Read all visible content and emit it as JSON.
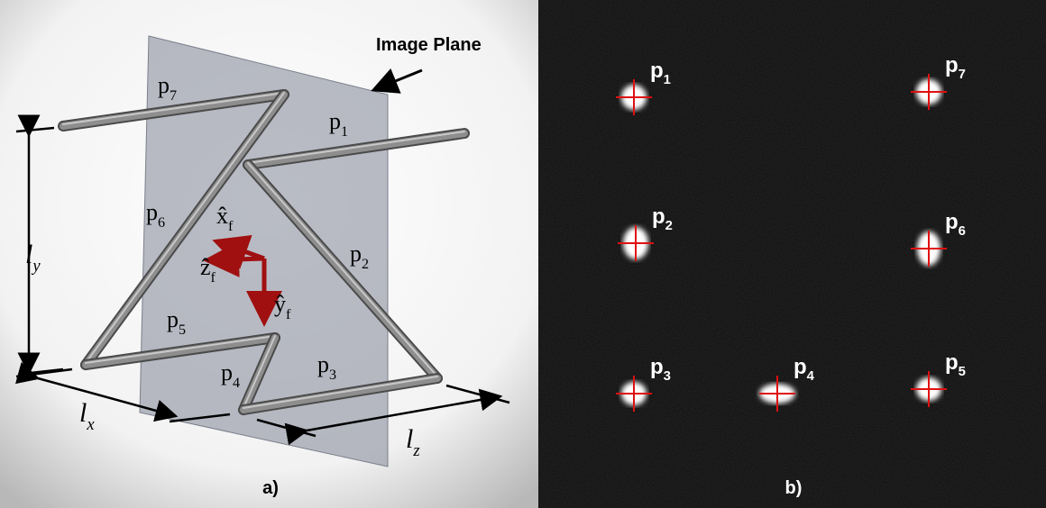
{
  "panel_a": {
    "label": "a)",
    "plane_label": "Image Plane",
    "points": [
      {
        "name": "p",
        "index": "1"
      },
      {
        "name": "p",
        "index": "2"
      },
      {
        "name": "p",
        "index": "3"
      },
      {
        "name": "p",
        "index": "4"
      },
      {
        "name": "p",
        "index": "5"
      },
      {
        "name": "p",
        "index": "6"
      },
      {
        "name": "p",
        "index": "7"
      }
    ],
    "dimensions": [
      {
        "name": "l",
        "index": "y"
      },
      {
        "name": "l",
        "index": "x"
      },
      {
        "name": "l",
        "index": "z"
      }
    ],
    "frame_axes": [
      {
        "name": "x̂",
        "index": "f"
      },
      {
        "name": "ẑ",
        "index": "f"
      },
      {
        "name": "ŷ",
        "index": "f"
      }
    ]
  },
  "panel_b": {
    "label": "b)",
    "points": [
      {
        "name": "p",
        "index": "1"
      },
      {
        "name": "p",
        "index": "2"
      },
      {
        "name": "p",
        "index": "3"
      },
      {
        "name": "p",
        "index": "4"
      },
      {
        "name": "p",
        "index": "5"
      },
      {
        "name": "p",
        "index": "6"
      },
      {
        "name": "p",
        "index": "7"
      }
    ]
  }
}
